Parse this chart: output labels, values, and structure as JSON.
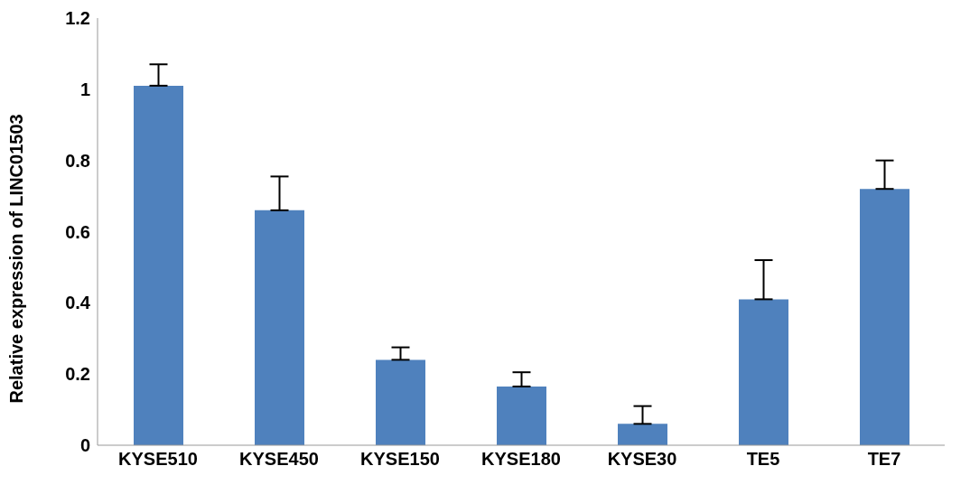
{
  "chart_data": {
    "type": "bar",
    "ylabel": "Relative expression of LINC01503",
    "categories": [
      "KYSE510",
      "KYSE450",
      "KYSE150",
      "KYSE180",
      "KYSE30",
      "TE5",
      "TE7"
    ],
    "values": [
      1.01,
      0.66,
      0.24,
      0.165,
      0.06,
      0.41,
      0.72
    ],
    "errors": [
      [
        1.01,
        1.07
      ],
      [
        0.66,
        0.755
      ],
      [
        0.24,
        0.275
      ],
      [
        0.165,
        0.205
      ],
      [
        0.06,
        0.11
      ],
      [
        0.41,
        0.52
      ],
      [
        0.72,
        0.8
      ]
    ],
    "color": "#4f81bd",
    "ylim": [
      0,
      1.2
    ],
    "yticks": [
      0,
      0.2,
      0.4,
      0.6,
      0.8,
      1,
      1.2
    ],
    "grid": false
  }
}
